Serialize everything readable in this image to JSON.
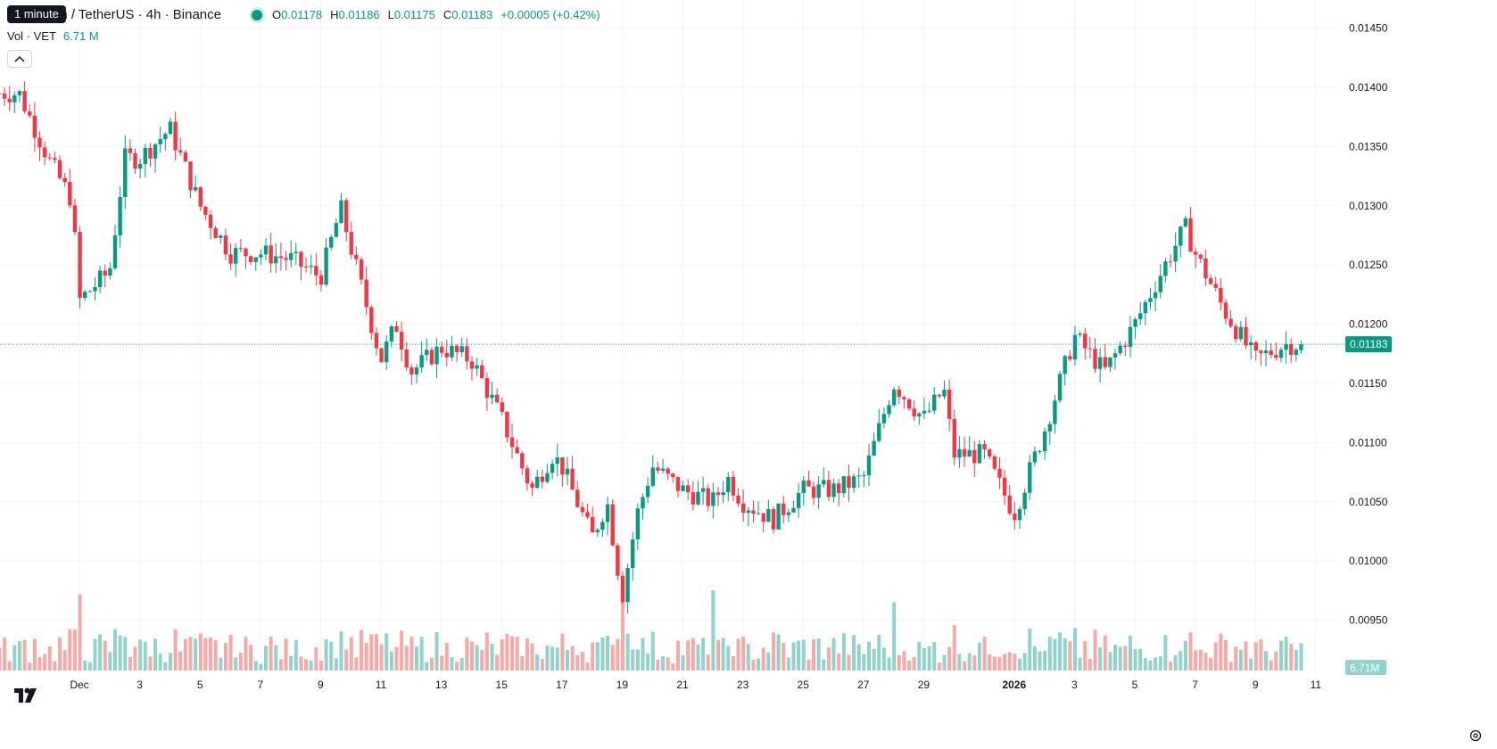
{
  "header": {
    "tooltip": "1 minute",
    "symbol": "in / TetherUS · 4h · Binance",
    "ohlc": [
      {
        "label": "O",
        "value": "0.01178"
      },
      {
        "label": "H",
        "value": "0.01186"
      },
      {
        "label": "L",
        "value": "0.01175"
      },
      {
        "label": "C",
        "value": "0.01183"
      }
    ],
    "change": "+0.00005 (+0.42%)",
    "volume_label": "Vol · VET",
    "volume_value": "6.71 M"
  },
  "price_axis": {
    "ticks": [
      "0.01450",
      "0.01400",
      "0.01350",
      "0.01300",
      "0.01250",
      "0.01200",
      "0.01150",
      "0.01100",
      "0.01050",
      "0.01000",
      "0.00950"
    ],
    "last_price_label": "0.01183",
    "volume_label": "6.71M"
  },
  "time_axis": {
    "labels": [
      "Dec",
      "3",
      "5",
      "7",
      "9",
      "11",
      "13",
      "15",
      "17",
      "19",
      "21",
      "23",
      "25",
      "27",
      "29",
      "2026",
      "3",
      "5",
      "7",
      "9",
      "11"
    ]
  },
  "colors": {
    "up": "#089981",
    "down": "#f23645",
    "up_volume": "#92d2cc",
    "down_volume": "#f7a9a7",
    "grid": "#f0f3fa"
  },
  "icons": {
    "logo": "tradingview-logo-icon",
    "settings": "settings-gear-icon",
    "collapse": "chevron-up-icon"
  },
  "chart_data": {
    "type": "candlestick",
    "interval": "4h",
    "price_range": [
      0.0092,
      0.0146
    ],
    "last_price": 0.01183,
    "time_range": [
      "2025-11-30",
      "2026-01-11"
    ],
    "waypoints": [
      {
        "date": "2025-11-29",
        "close": 0.01395
      },
      {
        "date": "2025-11-30",
        "close": 0.01338
      },
      {
        "date": "2025-11-30T18:00",
        "close": 0.01305
      },
      {
        "date": "2025-12-01",
        "close": 0.0122
      },
      {
        "date": "2025-12-02",
        "close": 0.01245
      },
      {
        "date": "2025-12-02T12:00",
        "close": 0.0134
      },
      {
        "date": "2025-12-03",
        "close": 0.0134
      },
      {
        "date": "2025-12-04",
        "close": 0.01365
      },
      {
        "date": "2025-12-05",
        "close": 0.013
      },
      {
        "date": "2025-12-06",
        "close": 0.0126
      },
      {
        "date": "2025-12-07",
        "close": 0.0126
      },
      {
        "date": "2025-12-08",
        "close": 0.01255
      },
      {
        "date": "2025-12-09",
        "close": 0.0124
      },
      {
        "date": "2025-12-09T16:00",
        "close": 0.01298
      },
      {
        "date": "2025-12-10",
        "close": 0.01265
      },
      {
        "date": "2025-12-11",
        "close": 0.0117
      },
      {
        "date": "2025-12-11T12:00",
        "close": 0.012
      },
      {
        "date": "2025-12-12",
        "close": 0.0116
      },
      {
        "date": "2025-12-13",
        "close": 0.0118
      },
      {
        "date": "2025-12-14",
        "close": 0.0117
      },
      {
        "date": "2025-12-15",
        "close": 0.0112
      },
      {
        "date": "2025-12-16",
        "close": 0.0106
      },
      {
        "date": "2025-12-16T16:00",
        "close": 0.0109
      },
      {
        "date": "2025-12-17",
        "close": 0.0108
      },
      {
        "date": "2025-12-18",
        "close": 0.0102
      },
      {
        "date": "2025-12-18T12:00",
        "close": 0.0105
      },
      {
        "date": "2025-12-19",
        "close": 0.0097
      },
      {
        "date": "2025-12-19T12:00",
        "close": 0.0104
      },
      {
        "date": "2025-12-20",
        "close": 0.0108
      },
      {
        "date": "2025-12-21",
        "close": 0.0106
      },
      {
        "date": "2025-12-22",
        "close": 0.0105
      },
      {
        "date": "2025-12-22T12:00",
        "close": 0.0107
      },
      {
        "date": "2025-12-23",
        "close": 0.0105
      },
      {
        "date": "2025-12-24",
        "close": 0.01035
      },
      {
        "date": "2025-12-25",
        "close": 0.0106
      },
      {
        "date": "2025-12-26",
        "close": 0.0106
      },
      {
        "date": "2025-12-27",
        "close": 0.0107
      },
      {
        "date": "2025-12-28",
        "close": 0.0115
      },
      {
        "date": "2025-12-29",
        "close": 0.0112
      },
      {
        "date": "2025-12-29T16:00",
        "close": 0.01145
      },
      {
        "date": "2025-12-30",
        "close": 0.0109
      },
      {
        "date": "2025-12-31",
        "close": 0.0109
      },
      {
        "date": "2026-01-01",
        "close": 0.0104
      },
      {
        "date": "2026-01-02",
        "close": 0.0111
      },
      {
        "date": "2026-01-03",
        "close": 0.0119
      },
      {
        "date": "2026-01-04",
        "close": 0.0116
      },
      {
        "date": "2026-01-05",
        "close": 0.012
      },
      {
        "date": "2026-01-06",
        "close": 0.0125
      },
      {
        "date": "2026-01-06T16:00",
        "close": 0.01282
      },
      {
        "date": "2026-01-07",
        "close": 0.0126
      },
      {
        "date": "2026-01-08",
        "close": 0.0121
      },
      {
        "date": "2026-01-09",
        "close": 0.0117
      },
      {
        "date": "2026-01-10",
        "close": 0.01183
      }
    ],
    "volume_relative_spikes": [
      {
        "date": "2025-12-01",
        "level": 0.95
      },
      {
        "date": "2025-12-19",
        "level": 0.9
      },
      {
        "date": "2025-12-22",
        "level": 1.0
      },
      {
        "date": "2025-12-28",
        "level": 0.85
      }
    ]
  }
}
